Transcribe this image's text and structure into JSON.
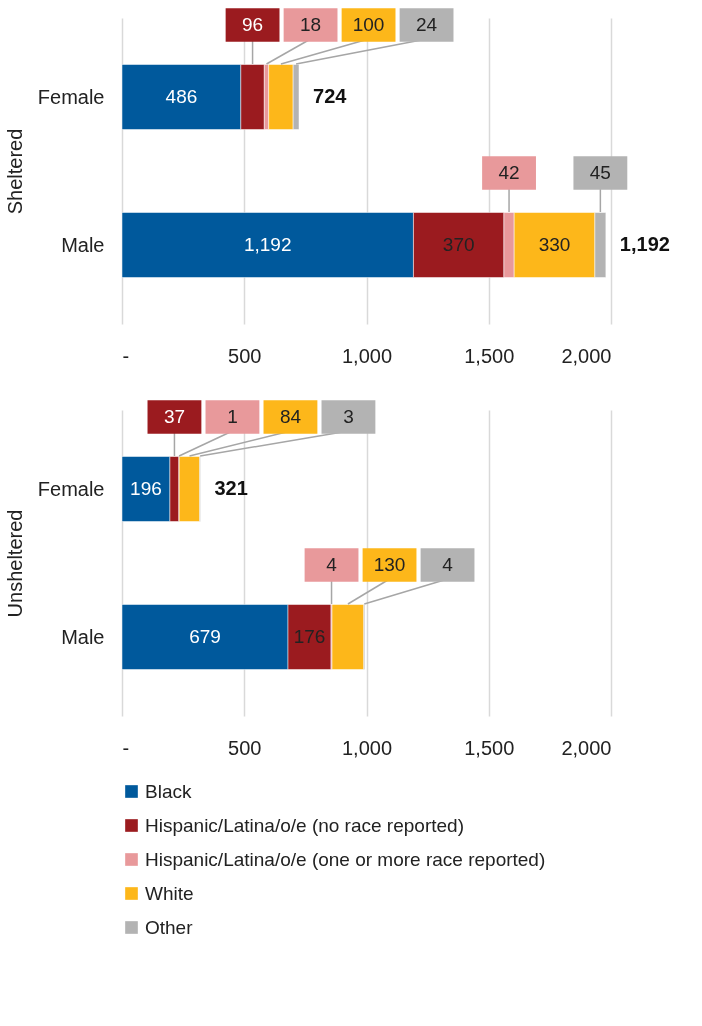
{
  "chart_data": [
    {
      "type": "bar",
      "orientation": "horizontal",
      "stacked": true,
      "ylabel": "Sheltered",
      "categories": [
        "Female",
        "Male"
      ],
      "series": [
        {
          "name": "Black",
          "color": "#00599c",
          "values": [
            486,
            1192
          ],
          "value_labels": [
            "486",
            "1,192"
          ]
        },
        {
          "name": "Hispanic/Latina/o/e (no race reported)",
          "color": "#9b1b1f",
          "values": [
            96,
            370
          ],
          "value_labels": [
            "96",
            "370"
          ]
        },
        {
          "name": "Hispanic/Latina/o/e (one or more race reported)",
          "color": "#e8999b",
          "values": [
            18,
            42
          ],
          "value_labels": [
            "18",
            "42"
          ]
        },
        {
          "name": "White",
          "color": "#fdb71a",
          "values": [
            100,
            330
          ],
          "value_labels": [
            "100",
            "330"
          ]
        },
        {
          "name": "Other",
          "color": "#b3b3b3",
          "values": [
            24,
            45
          ],
          "value_labels": [
            "24",
            "45"
          ]
        }
      ],
      "totals": [
        "724",
        null
      ],
      "annotations": [
        {
          "text": "1,192",
          "x": 1979,
          "y": "Male"
        }
      ],
      "xlim": [
        0,
        2000
      ],
      "xticks": [
        {
          "value": 0,
          "label": "-"
        },
        500,
        {
          "value": 1000,
          "label": "1,000"
        },
        {
          "value": 1500,
          "label": "1,500"
        },
        {
          "value": 2000,
          "label": "2,000"
        }
      ],
      "grid": "x",
      "legend": "bottom"
    },
    {
      "type": "bar",
      "orientation": "horizontal",
      "stacked": true,
      "ylabel": "Unsheltered",
      "categories": [
        "Female",
        "Male"
      ],
      "series": [
        {
          "name": "Black",
          "color": "#00599c",
          "values": [
            196,
            679
          ],
          "value_labels": [
            "196",
            "679"
          ]
        },
        {
          "name": "Hispanic/Latina/o/e (no race reported)",
          "color": "#9b1b1f",
          "values": [
            37,
            176
          ],
          "value_labels": [
            "37",
            "176"
          ]
        },
        {
          "name": "Hispanic/Latina/o/e (one or more race reported)",
          "color": "#e8999b",
          "values": [
            1,
            4
          ],
          "value_labels": [
            "1",
            "4"
          ]
        },
        {
          "name": "White",
          "color": "#fdb71a",
          "values": [
            84,
            130
          ],
          "value_labels": [
            "84",
            "130"
          ]
        },
        {
          "name": "Other",
          "color": "#b3b3b3",
          "values": [
            3,
            4
          ],
          "value_labels": [
            "3",
            "4"
          ]
        }
      ],
      "totals": [
        "321",
        null
      ],
      "xlim": [
        0,
        2000
      ],
      "xticks": [
        {
          "value": 0,
          "label": "-"
        },
        500,
        {
          "value": 1000,
          "label": "1,000"
        },
        {
          "value": 1500,
          "label": "1,500"
        },
        {
          "value": 2000,
          "label": "2,000"
        }
      ],
      "grid": "x",
      "legend": "bottom"
    }
  ]
}
